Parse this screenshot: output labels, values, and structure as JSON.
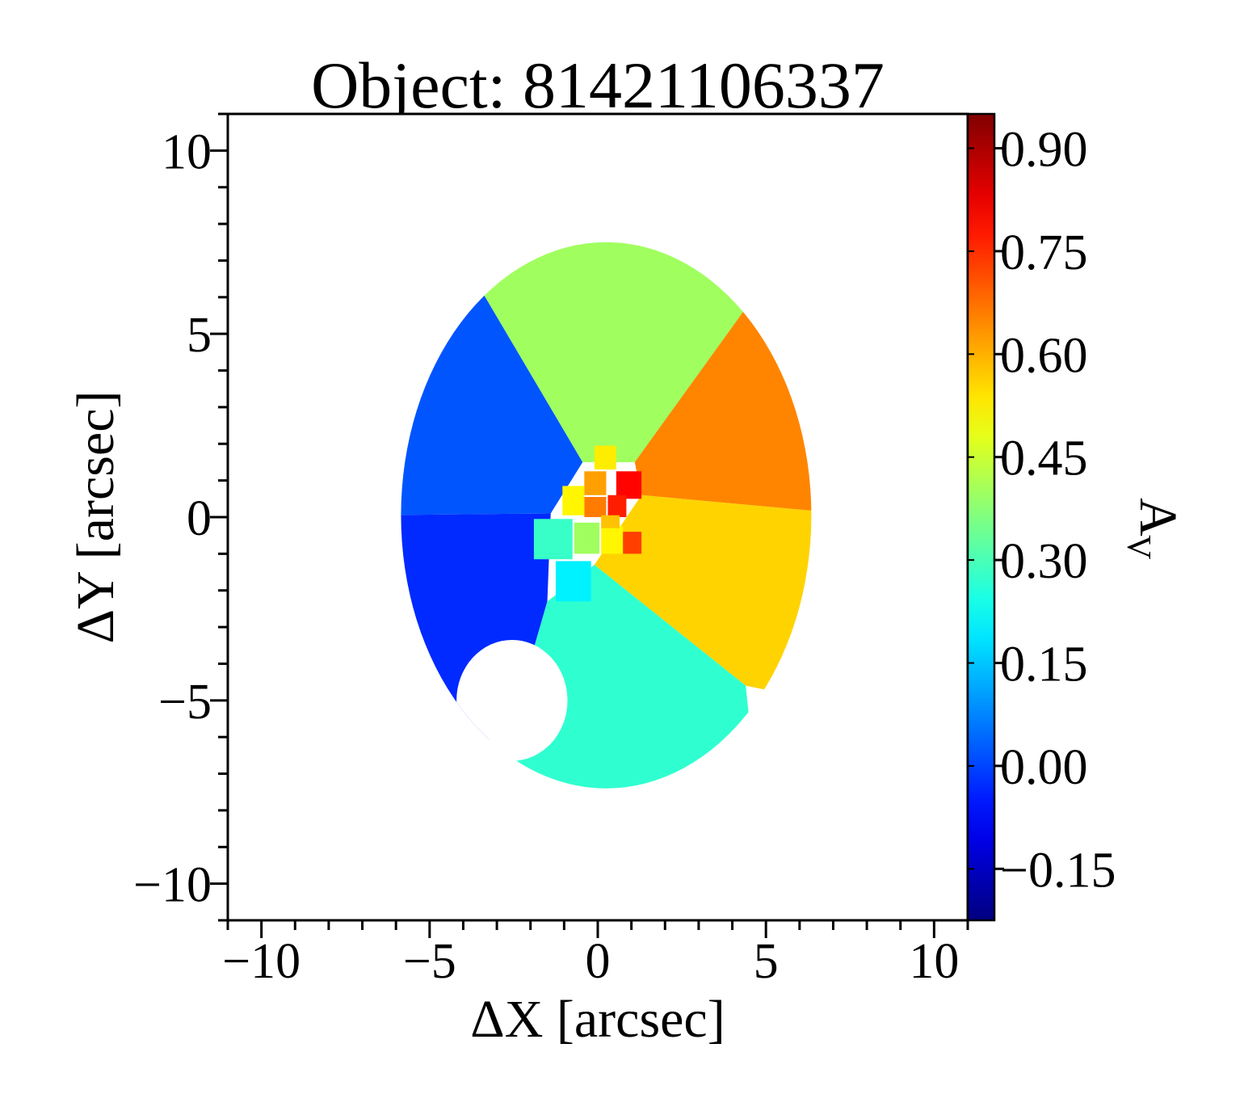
{
  "chart_data": {
    "type": "heatmap",
    "title": "Object: 81421106337",
    "xlabel": "ΔX [arcsec]",
    "ylabel": "ΔY [arcsec]",
    "colorbar_label_main": "A",
    "colorbar_label_sub": "V",
    "xlim": [
      -11,
      11
    ],
    "ylim": [
      -11,
      11
    ],
    "x_ticks": [
      -10,
      -5,
      0,
      5,
      10
    ],
    "x_tick_labels": [
      "−10",
      "−5",
      "0",
      "5",
      "10"
    ],
    "y_ticks": [
      -10,
      -5,
      0,
      5,
      10
    ],
    "y_tick_labels": [
      "−10",
      "−5",
      "0",
      "5",
      "10"
    ],
    "colorbar": {
      "colormap": "jet",
      "range": [
        -0.225,
        0.95
      ],
      "ticks": [
        -0.15,
        0.0,
        0.15,
        0.3,
        0.45,
        0.6,
        0.75,
        0.9
      ],
      "tick_labels": [
        "−0.15",
        "0.00",
        "0.15",
        "0.30",
        "0.45",
        "0.60",
        "0.75",
        "0.90"
      ]
    },
    "map": {
      "center": [
        0.25,
        0.05
      ],
      "semi_axes": [
        6.1,
        7.45
      ],
      "bins": [
        {
          "name": "west-upper",
          "polygon": [
            [
              -12,
              10
            ],
            [
              -12,
              0.0
            ],
            [
              -1.4,
              0.1
            ],
            [
              -0.45,
              1.5
            ],
            [
              -4.5,
              7.8
            ]
          ],
          "value": 0.02
        },
        {
          "name": "west-lower",
          "polygon": [
            [
              -12,
              0.0
            ],
            [
              -12,
              -10
            ],
            [
              -2.6,
              -5.8
            ],
            [
              -1.5,
              -2.3
            ],
            [
              -1.4,
              0.1
            ]
          ],
          "value": -0.03
        },
        {
          "name": "north",
          "polygon": [
            [
              -4.5,
              7.8
            ],
            [
              -0.45,
              1.5
            ],
            [
              1.1,
              1.5
            ],
            [
              4.4,
              5.7
            ],
            [
              3.5,
              10
            ],
            [
              -3,
              10
            ]
          ],
          "value": 0.4
        },
        {
          "name": "east-upper",
          "polygon": [
            [
              4.4,
              5.7
            ],
            [
              1.1,
              1.5
            ],
            [
              1.3,
              0.6
            ],
            [
              12,
              -0.3
            ],
            [
              12,
              7
            ]
          ],
          "value": 0.65
        },
        {
          "name": "east-lower",
          "polygon": [
            [
              1.3,
              0.6
            ],
            [
              12,
              -0.3
            ],
            [
              12,
              -6
            ],
            [
              4.4,
              -4.6
            ],
            [
              -0.1,
              -1.3
            ]
          ],
          "value": 0.56
        },
        {
          "name": "south",
          "polygon": [
            [
              4.4,
              -4.6
            ],
            [
              -0.1,
              -1.3
            ],
            [
              -1.5,
              -2.3
            ],
            [
              -2.6,
              -5.8
            ],
            [
              -2,
              -10
            ],
            [
              5,
              -10
            ]
          ],
          "value": 0.27
        }
      ],
      "small_bins": [
        {
          "x": -0.1,
          "y": 1.3,
          "w": 0.65,
          "h": 0.65,
          "value": 0.53
        },
        {
          "x": -0.4,
          "y": 0.6,
          "w": 0.65,
          "h": 0.65,
          "value": 0.62
        },
        {
          "x": -0.4,
          "y": 0.0,
          "w": 0.65,
          "h": 0.55,
          "value": 0.66
        },
        {
          "x": 0.55,
          "y": 0.5,
          "w": 0.75,
          "h": 0.75,
          "value": 0.8
        },
        {
          "x": 0.3,
          "y": 0.0,
          "w": 0.55,
          "h": 0.6,
          "value": 0.77
        },
        {
          "x": -1.05,
          "y": 0.05,
          "w": 0.65,
          "h": 0.8,
          "value": 0.52
        },
        {
          "x": -0.7,
          "y": -1.0,
          "w": 0.75,
          "h": 0.85,
          "value": 0.4
        },
        {
          "x": -1.9,
          "y": -1.15,
          "w": 1.15,
          "h": 1.1,
          "value": 0.28
        },
        {
          "x": -1.25,
          "y": -2.3,
          "w": 1.05,
          "h": 1.1,
          "value": 0.2
        },
        {
          "x": 0.1,
          "y": -1.0,
          "w": 0.65,
          "h": 0.75,
          "value": 0.52
        },
        {
          "x": 0.75,
          "y": -1.0,
          "w": 0.55,
          "h": 0.6,
          "value": 0.73
        },
        {
          "x": 0.1,
          "y": -0.3,
          "w": 0.55,
          "h": 0.35,
          "value": 0.58
        }
      ],
      "masked_circle": {
        "center": [
          -2.55,
          -5.0
        ],
        "radius": 1.65
      }
    }
  }
}
